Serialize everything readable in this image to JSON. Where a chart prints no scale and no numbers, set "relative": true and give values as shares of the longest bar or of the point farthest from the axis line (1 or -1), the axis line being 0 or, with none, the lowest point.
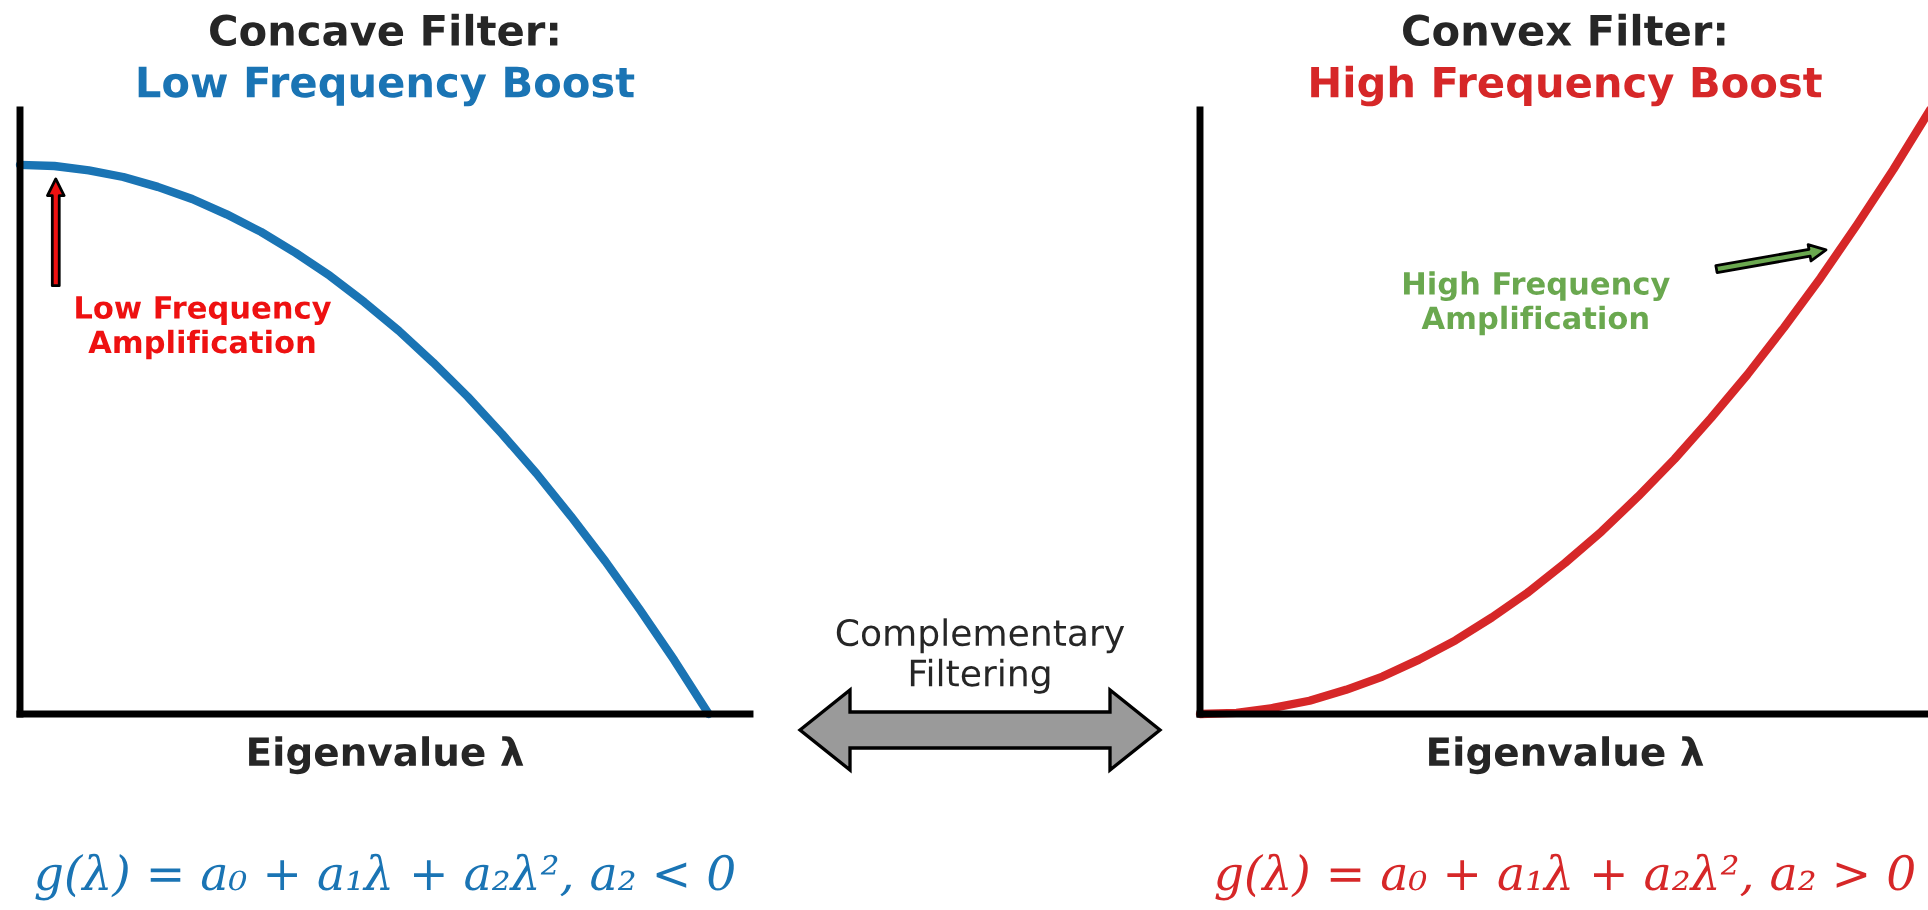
{
  "chart_data": [
    {
      "type": "line",
      "title": "Concave Filter:",
      "subtitle": "Low Frequency Boost",
      "xlabel": "Eigenvalue λ",
      "relative": true,
      "categories": [
        null,
        null,
        null,
        null,
        null,
        null,
        null,
        null,
        null,
        null,
        null,
        null,
        null,
        null,
        null,
        null,
        null,
        null,
        null,
        null,
        null
      ],
      "series": [
        {
          "color": "#1a74b4",
          "values": [
            1,
            0.998,
            0.99,
            0.978,
            0.96,
            0.938,
            0.91,
            0.878,
            0.84,
            0.798,
            0.75,
            0.698,
            0.64,
            0.578,
            0.51,
            0.438,
            0.36,
            0.278,
            0.19,
            0.098,
            0
          ]
        }
      ],
      "annotations": [
        "Low Frequency\nAmplification",
        "g(λ) = a₀ + a₁λ + a₂λ², a₂ < 0",
        "Complementary\nFiltering"
      ],
      "marker": "none",
      "line_style": "solid"
    },
    {
      "type": "line",
      "title": "Convex Filter:",
      "subtitle": "High Frequency Boost",
      "xlabel": "Eigenvalue λ",
      "relative": true,
      "categories": [
        null,
        null,
        null,
        null,
        null,
        null,
        null,
        null,
        null,
        null,
        null,
        null,
        null,
        null,
        null,
        null,
        null,
        null,
        null,
        null,
        null
      ],
      "series": [
        {
          "color": "#d62728",
          "values": [
            0,
            0.002,
            0.01,
            0.022,
            0.04,
            0.062,
            0.09,
            0.122,
            0.16,
            0.202,
            0.25,
            0.302,
            0.36,
            0.422,
            0.49,
            0.562,
            0.64,
            0.722,
            0.81,
            0.902,
            1
          ]
        }
      ],
      "annotations": [
        "High Frequency\nAmplification",
        "g(λ) = a₀ + a₁λ + a₂λ², a₂ > 0"
      ],
      "marker": "none",
      "line_style": "solid"
    }
  ]
}
